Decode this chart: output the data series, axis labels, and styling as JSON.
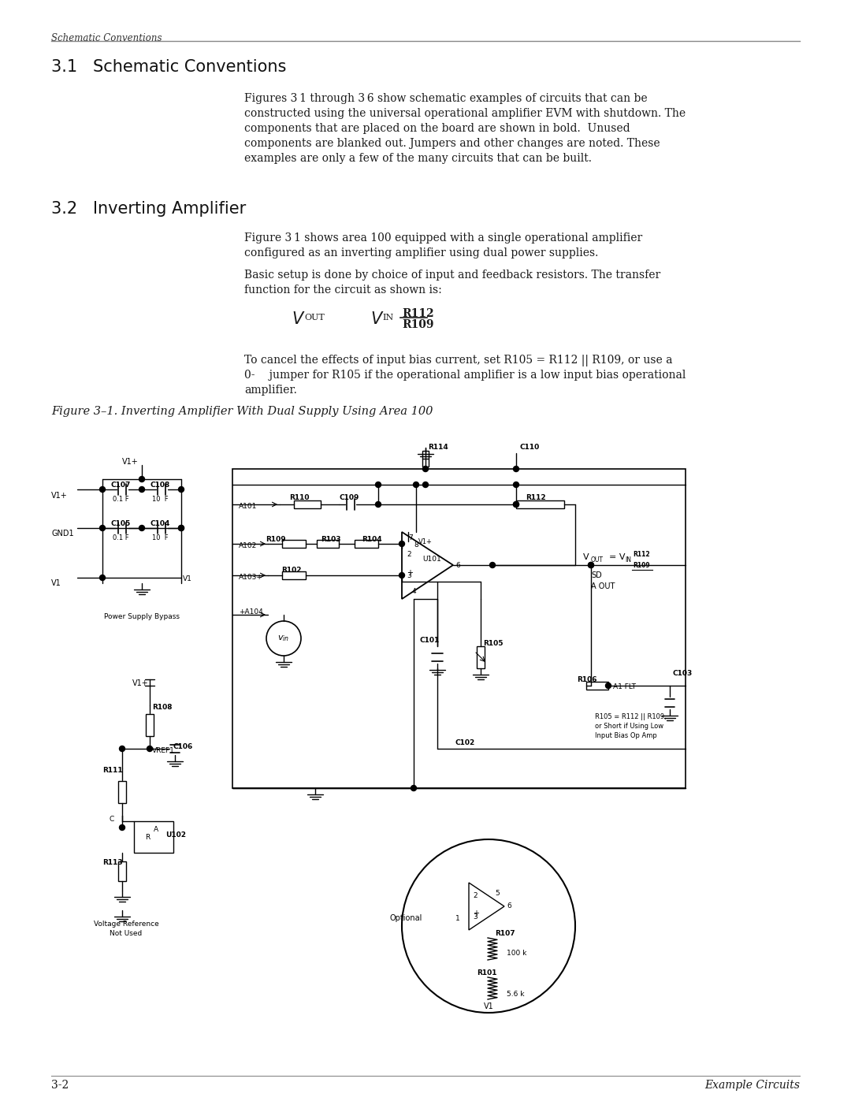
{
  "page_width": 10.8,
  "page_height": 13.97,
  "dpi": 100,
  "bg_color": "#ffffff",
  "text_color": "#1a1a1a",
  "header_text": "Schematic Conventions",
  "section31_title": "3.1   Schematic Conventions",
  "section32_title": "3.2   Inverting Amplifier",
  "para31": "Figures 3 1 through 3 6 show schematic examples of circuits that can be\nconstructed using the universal operational amplifier EVM with shutdown. The\ncomponents that are placed on the board are shown in bold.  Unused\ncomponents are blanked out. Jumpers and other changes are noted. These\nexamples are only a few of the many circuits that can be built.",
  "para32a": "Figure 3 1 shows area 100 equipped with a single operational amplifier\nconfigured as an inverting amplifier using dual power supplies.",
  "para32b": "Basic setup is done by choice of input and feedback resistors. The transfer\nfunction for the circuit as shown is:",
  "para32c": "To cancel the effects of input bias current, set R105 = R112 || R109, or use a\n0-  jumper for R105 if the operational amplifier is a low input bias operational\namplifier.",
  "fig_caption": "Figure 3–1. Inverting Amplifier With Dual Supply Using Area 100",
  "footer_left": "3-2",
  "footer_right": "Example Circuits"
}
